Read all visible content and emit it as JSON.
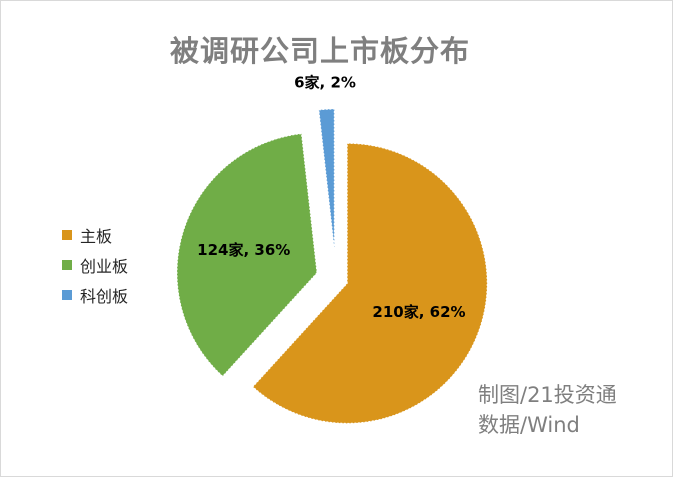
{
  "chart_data": {
    "type": "pie",
    "title": "被调研公司上市板分布",
    "slices": [
      {
        "name": "主板",
        "value": 210,
        "label": "210家, 62%",
        "color": "#d9951b"
      },
      {
        "name": "创业板",
        "value": 124,
        "label": "124家, 36%",
        "color": "#70ad47"
      },
      {
        "name": "科创板",
        "value": 6,
        "label": "6家, 2%",
        "color": "#5b9bd5"
      }
    ],
    "legend_position": "left",
    "exploded": true
  },
  "source": {
    "line1": "制图/21投资通",
    "line2": "数据/Wind"
  }
}
